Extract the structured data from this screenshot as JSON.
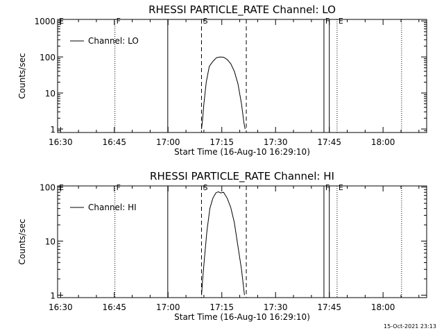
{
  "footer": {
    "timestamp": "15-Oct-2021 23:13"
  },
  "chart_data": [
    {
      "type": "line",
      "title": "RHESSI PARTICLE_RATE Channel: LO",
      "xlabel": "Start Time (16-Aug-10 16:29:10)",
      "ylabel": "Counts/sec",
      "yscale": "log",
      "legend": {
        "label": "Channel: LO",
        "placement": "top-left"
      },
      "x_ticks": [
        "16:30",
        "16:45",
        "17:00",
        "17:15",
        "17:30",
        "17:45",
        "18:00"
      ],
      "y_ticks": [
        "1",
        "10",
        "100",
        "1000"
      ],
      "xlim": [
        "16:29:10",
        "18:12:10"
      ],
      "ylim": [
        0.8,
        1100
      ],
      "event_markers": [
        {
          "label": "E",
          "time": "16:29:10",
          "style": "solid"
        },
        {
          "label": "F",
          "time": "16:45:10",
          "style": "dotted"
        },
        {
          "label": "",
          "time": "16:59:55",
          "style": "solid"
        },
        {
          "label": "S",
          "time": "17:09:20",
          "style": "dashed"
        },
        {
          "label": "",
          "time": "17:21:50",
          "style": "dashed"
        },
        {
          "label": "F",
          "time": "17:43:30",
          "style": "solid"
        },
        {
          "label": "",
          "time": "17:45:00",
          "style": "solid"
        },
        {
          "label": "E",
          "time": "17:47:10",
          "style": "dotted"
        },
        {
          "label": "",
          "time": "18:05:10",
          "style": "dotted"
        }
      ],
      "series": [
        {
          "name": "Channel: LO",
          "points": [
            [
              "17:09:20",
              1
            ],
            [
              "17:09:40",
              2
            ],
            [
              "17:10:00",
              5
            ],
            [
              "17:10:40",
              20
            ],
            [
              "17:11:30",
              55
            ],
            [
              "17:12:30",
              75
            ],
            [
              "17:13:30",
              95
            ],
            [
              "17:14:30",
              100
            ],
            [
              "17:15:30",
              98
            ],
            [
              "17:16:30",
              85
            ],
            [
              "17:17:30",
              65
            ],
            [
              "17:18:30",
              40
            ],
            [
              "17:19:30",
              18
            ],
            [
              "17:20:30",
              5
            ],
            [
              "17:21:10",
              1.5
            ],
            [
              "17:21:30",
              1
            ]
          ]
        }
      ]
    },
    {
      "type": "line",
      "title": "RHESSI PARTICLE_RATE Channel: HI",
      "xlabel": "Start Time (16-Aug-10 16:29:10)",
      "ylabel": "Counts/sec",
      "yscale": "log",
      "legend": {
        "label": "Channel: HI",
        "placement": "top-left"
      },
      "x_ticks": [
        "16:30",
        "16:45",
        "17:00",
        "17:15",
        "17:30",
        "17:45",
        "18:00"
      ],
      "y_ticks": [
        "1",
        "10",
        "100"
      ],
      "xlim": [
        "16:29:10",
        "18:12:10"
      ],
      "ylim": [
        0.9,
        105
      ],
      "event_markers": [
        {
          "label": "E",
          "time": "16:29:10",
          "style": "solid"
        },
        {
          "label": "F",
          "time": "16:45:10",
          "style": "dotted"
        },
        {
          "label": "",
          "time": "16:59:55",
          "style": "solid"
        },
        {
          "label": "S",
          "time": "17:09:20",
          "style": "dashed"
        },
        {
          "label": "",
          "time": "17:21:50",
          "style": "dashed"
        },
        {
          "label": "F",
          "time": "17:43:30",
          "style": "solid"
        },
        {
          "label": "",
          "time": "17:45:00",
          "style": "solid"
        },
        {
          "label": "E",
          "time": "17:47:10",
          "style": "dotted"
        },
        {
          "label": "",
          "time": "18:05:10",
          "style": "dotted"
        }
      ],
      "series": [
        {
          "name": "Channel: HI",
          "points": [
            [
              "17:09:20",
              1
            ],
            [
              "17:09:40",
              2
            ],
            [
              "17:10:10",
              5
            ],
            [
              "17:10:50",
              15
            ],
            [
              "17:11:40",
              40
            ],
            [
              "17:12:30",
              62
            ],
            [
              "17:13:20",
              78
            ],
            [
              "17:14:00",
              82
            ],
            [
              "17:14:40",
              78
            ],
            [
              "17:15:30",
              80
            ],
            [
              "17:16:30",
              62
            ],
            [
              "17:17:30",
              42
            ],
            [
              "17:18:30",
              22
            ],
            [
              "17:19:30",
              8
            ],
            [
              "17:20:30",
              3
            ],
            [
              "17:21:20",
              1
            ]
          ]
        }
      ]
    }
  ]
}
